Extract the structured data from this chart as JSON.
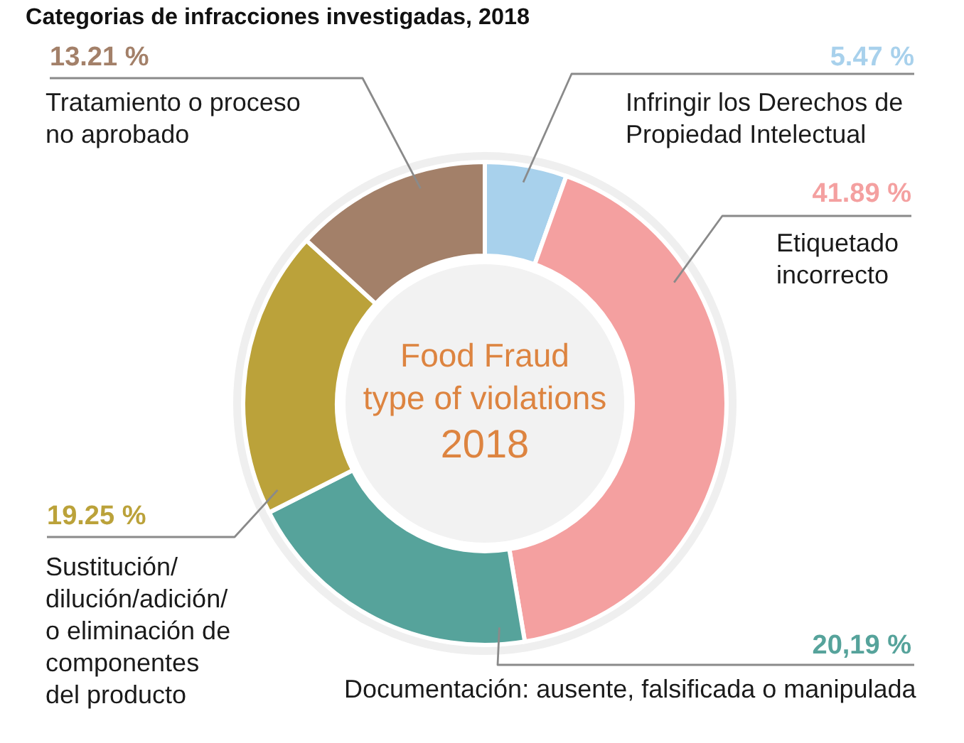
{
  "chart_data": {
    "type": "donut",
    "title": "Categorias de infracciones investigadas, 2018",
    "categories": [
      "Infringir los Derechos de\nPropiedad Intelectual",
      "Etiquetado\nincorrecto",
      "Documentación: ausente, falsificada o manipulada",
      "Sustitución/\ndilución/adición/\no eliminación de\ncomponentes\ndel producto",
      "Tratamiento o proceso\nno aprobado"
    ],
    "values": [
      5.47,
      41.89,
      20.19,
      19.25,
      13.21
    ],
    "colors": [
      "#a8d1ec",
      "#f4a0a0",
      "#56a39b",
      "#bba23a",
      "#a38069"
    ],
    "value_labels": [
      "5.47 %",
      "41.89 %",
      "20,19 %",
      "19.25 %",
      "13.21 %"
    ],
    "annotations": [
      "Food Fraud\ntype of violations\n2018"
    ]
  }
}
